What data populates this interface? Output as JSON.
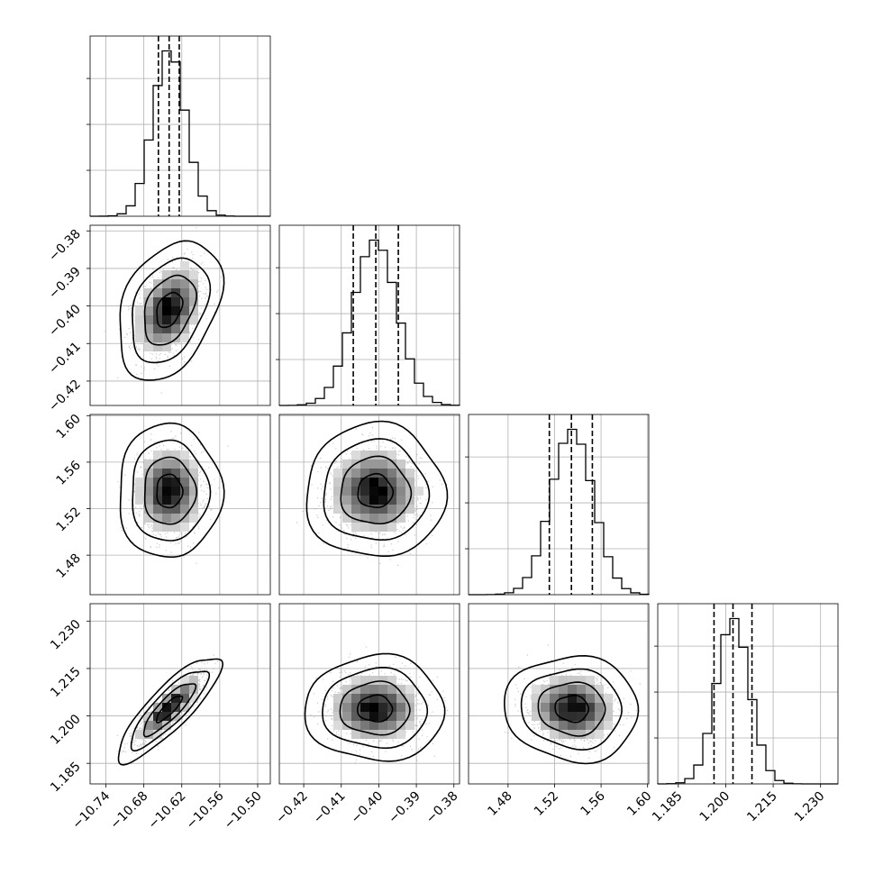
{
  "chart_data": {
    "type": "corner",
    "n_params": 4,
    "grid": true,
    "colors": {
      "ink": "#000000",
      "grid": "#b0b0b0",
      "scatter": "#888888"
    },
    "params": [
      {
        "range": [
          -10.765,
          -10.48
        ],
        "ticks": [
          -10.74,
          -10.68,
          -10.62,
          -10.56,
          -10.5
        ],
        "tick_labels": [
          "−10.74",
          "−10.68",
          "−10.62",
          "−10.56",
          "−10.50"
        ],
        "mean": -10.64,
        "sd": 0.0255,
        "quantiles": [
          -10.657,
          -10.64,
          -10.624
        ]
      },
      {
        "range": [
          -0.4265,
          -0.3785
        ],
        "ticks": [
          -0.42,
          -0.41,
          -0.4,
          -0.39,
          -0.38
        ],
        "tick_labels": [
          "−0.42",
          "−0.41",
          "−0.40",
          "−0.39",
          "−0.38"
        ],
        "mean": -0.401,
        "sd": 0.0058,
        "quantiles": [
          -0.4068,
          -0.4008,
          -0.3948
        ]
      },
      {
        "range": [
          1.446,
          1.601
        ],
        "ticks": [
          1.48,
          1.52,
          1.56,
          1.6
        ],
        "tick_labels": [
          "1.48",
          "1.52",
          "1.56",
          "1.60"
        ],
        "mean": 1.535,
        "sd": 0.018,
        "quantiles": [
          1.5155,
          1.5345,
          1.5525
        ]
      },
      {
        "range": [
          1.1785,
          1.2355
        ],
        "ticks": [
          1.185,
          1.2,
          1.215,
          1.23
        ],
        "tick_labels": [
          "1.185",
          "1.200",
          "1.215",
          "1.230"
        ],
        "mean": 1.2023,
        "sd": 0.0052,
        "quantiles": [
          1.1963,
          1.2023,
          1.2083
        ]
      }
    ],
    "correlations": [
      {
        "i": 1,
        "j": 0,
        "r": 0.35
      },
      {
        "i": 2,
        "j": 0,
        "r": 0.0
      },
      {
        "i": 2,
        "j": 1,
        "r": 0.0
      },
      {
        "i": 3,
        "j": 0,
        "r": 0.85
      },
      {
        "i": 3,
        "j": 1,
        "r": 0.0
      },
      {
        "i": 3,
        "j": 2,
        "r": -0.05
      }
    ],
    "contour_levels_sigma": [
      0.5,
      1.0,
      1.5,
      2.0
    ],
    "histogram_bins": 20
  }
}
